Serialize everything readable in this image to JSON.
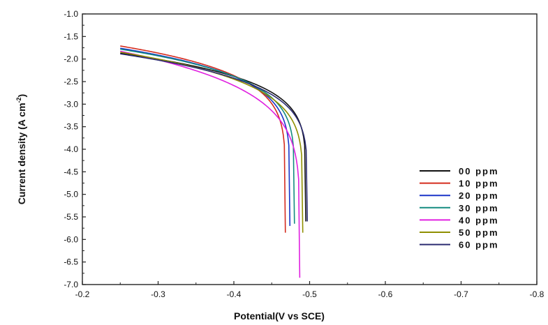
{
  "chart_data": {
    "type": "line",
    "xlabel": "Potential(V vs SCE)",
    "ylabel_main": "Current density (A cm",
    "ylabel_exp": "-2",
    "ylabel_close": ")",
    "xlim": [
      -0.2,
      -0.8
    ],
    "ylim": [
      -7.0,
      -1.0
    ],
    "x_ticks": [
      "-0.2",
      "-0.3",
      "-0.4",
      "-0.5",
      "-0.6",
      "-0.7",
      "-0.8"
    ],
    "y_ticks": [
      "-1.0",
      "-1.5",
      "-2.0",
      "-2.5",
      "-3.0",
      "-3.5",
      "-4.0",
      "-4.5",
      "-5.0",
      "-5.5",
      "-6.0",
      "-6.5",
      "-7.0"
    ],
    "grid": false,
    "legend_position": "bottom-right",
    "series": [
      {
        "name": "00 ppm",
        "color": "#111111",
        "ecorr": -0.495,
        "min": -5.6,
        "anodic_start": -1.72,
        "cathodic_end": -1.85,
        "anodic_k": 0.88,
        "cathodic_k": 0.78
      },
      {
        "name": "10 ppm",
        "color": "#d42b1e",
        "ecorr": -0.468,
        "min": -5.85,
        "anodic_start": -1.88,
        "cathodic_end": -1.55,
        "anodic_k": 0.97,
        "cathodic_k": 0.74
      },
      {
        "name": "20 ppm",
        "color": "#1a34c8",
        "ecorr": -0.474,
        "min": -5.7,
        "anodic_start": -1.88,
        "cathodic_end": -1.63,
        "anodic_k": 0.97,
        "cathodic_k": 0.78
      },
      {
        "name": "30 ppm",
        "color": "#138b80",
        "ecorr": -0.48,
        "min": -5.65,
        "anodic_start": -1.88,
        "cathodic_end": -1.68,
        "anodic_k": 0.97,
        "cathodic_k": 0.8
      },
      {
        "name": "40 ppm",
        "color": "#e020e0",
        "ecorr": -0.487,
        "min": -6.85,
        "anodic_start": -1.88,
        "cathodic_end": -1.74,
        "anodic_k": 0.97,
        "cathodic_k": 0.82
      },
      {
        "name": "50 ppm",
        "color": "#8f8f00",
        "ecorr": -0.491,
        "min": -5.85,
        "anodic_start": -1.88,
        "cathodic_end": -1.8,
        "anodic_k": 0.97,
        "cathodic_k": 0.83
      },
      {
        "name": "60 ppm",
        "color": "#2b2b70",
        "ecorr": -0.497,
        "min": -5.6,
        "anodic_start": -1.9,
        "cathodic_end": -1.87,
        "anodic_k": 0.96,
        "cathodic_k": 0.84
      }
    ],
    "x_range_data": [
      -0.25,
      -0.75
    ]
  }
}
